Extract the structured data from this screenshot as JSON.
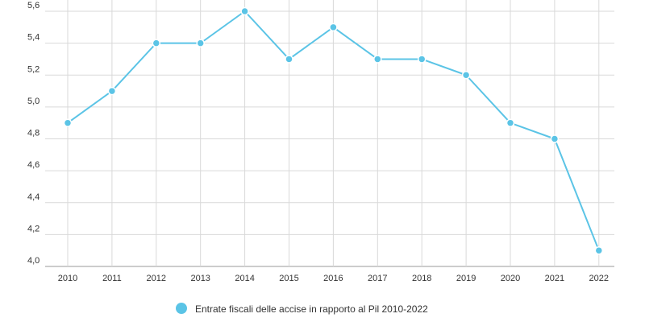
{
  "chart_data": {
    "type": "line",
    "title": "",
    "xlabel": "",
    "ylabel": "",
    "x": [
      "2010",
      "2011",
      "2012",
      "2013",
      "2014",
      "2015",
      "2016",
      "2017",
      "2018",
      "2019",
      "2020",
      "2021",
      "2022"
    ],
    "series": [
      {
        "name": "Entrate fiscali delle accise in rapporto al Pil 2010-2022",
        "values": [
          4.9,
          5.1,
          5.4,
          5.4,
          5.6,
          5.3,
          5.5,
          5.3,
          5.3,
          5.2,
          4.9,
          4.8,
          4.1
        ]
      }
    ],
    "ylim": [
      4.0,
      5.6
    ],
    "yticks": [
      "4,0",
      "4,2",
      "4,4",
      "4,6",
      "4,8",
      "5,0",
      "5,2",
      "5,4",
      "5,6"
    ],
    "grid": true,
    "legend_position": "bottom-center",
    "colors": {
      "line": "#5bc4e6",
      "grid": "#d9d9d9",
      "axis": "#999999",
      "text": "#333333"
    }
  }
}
